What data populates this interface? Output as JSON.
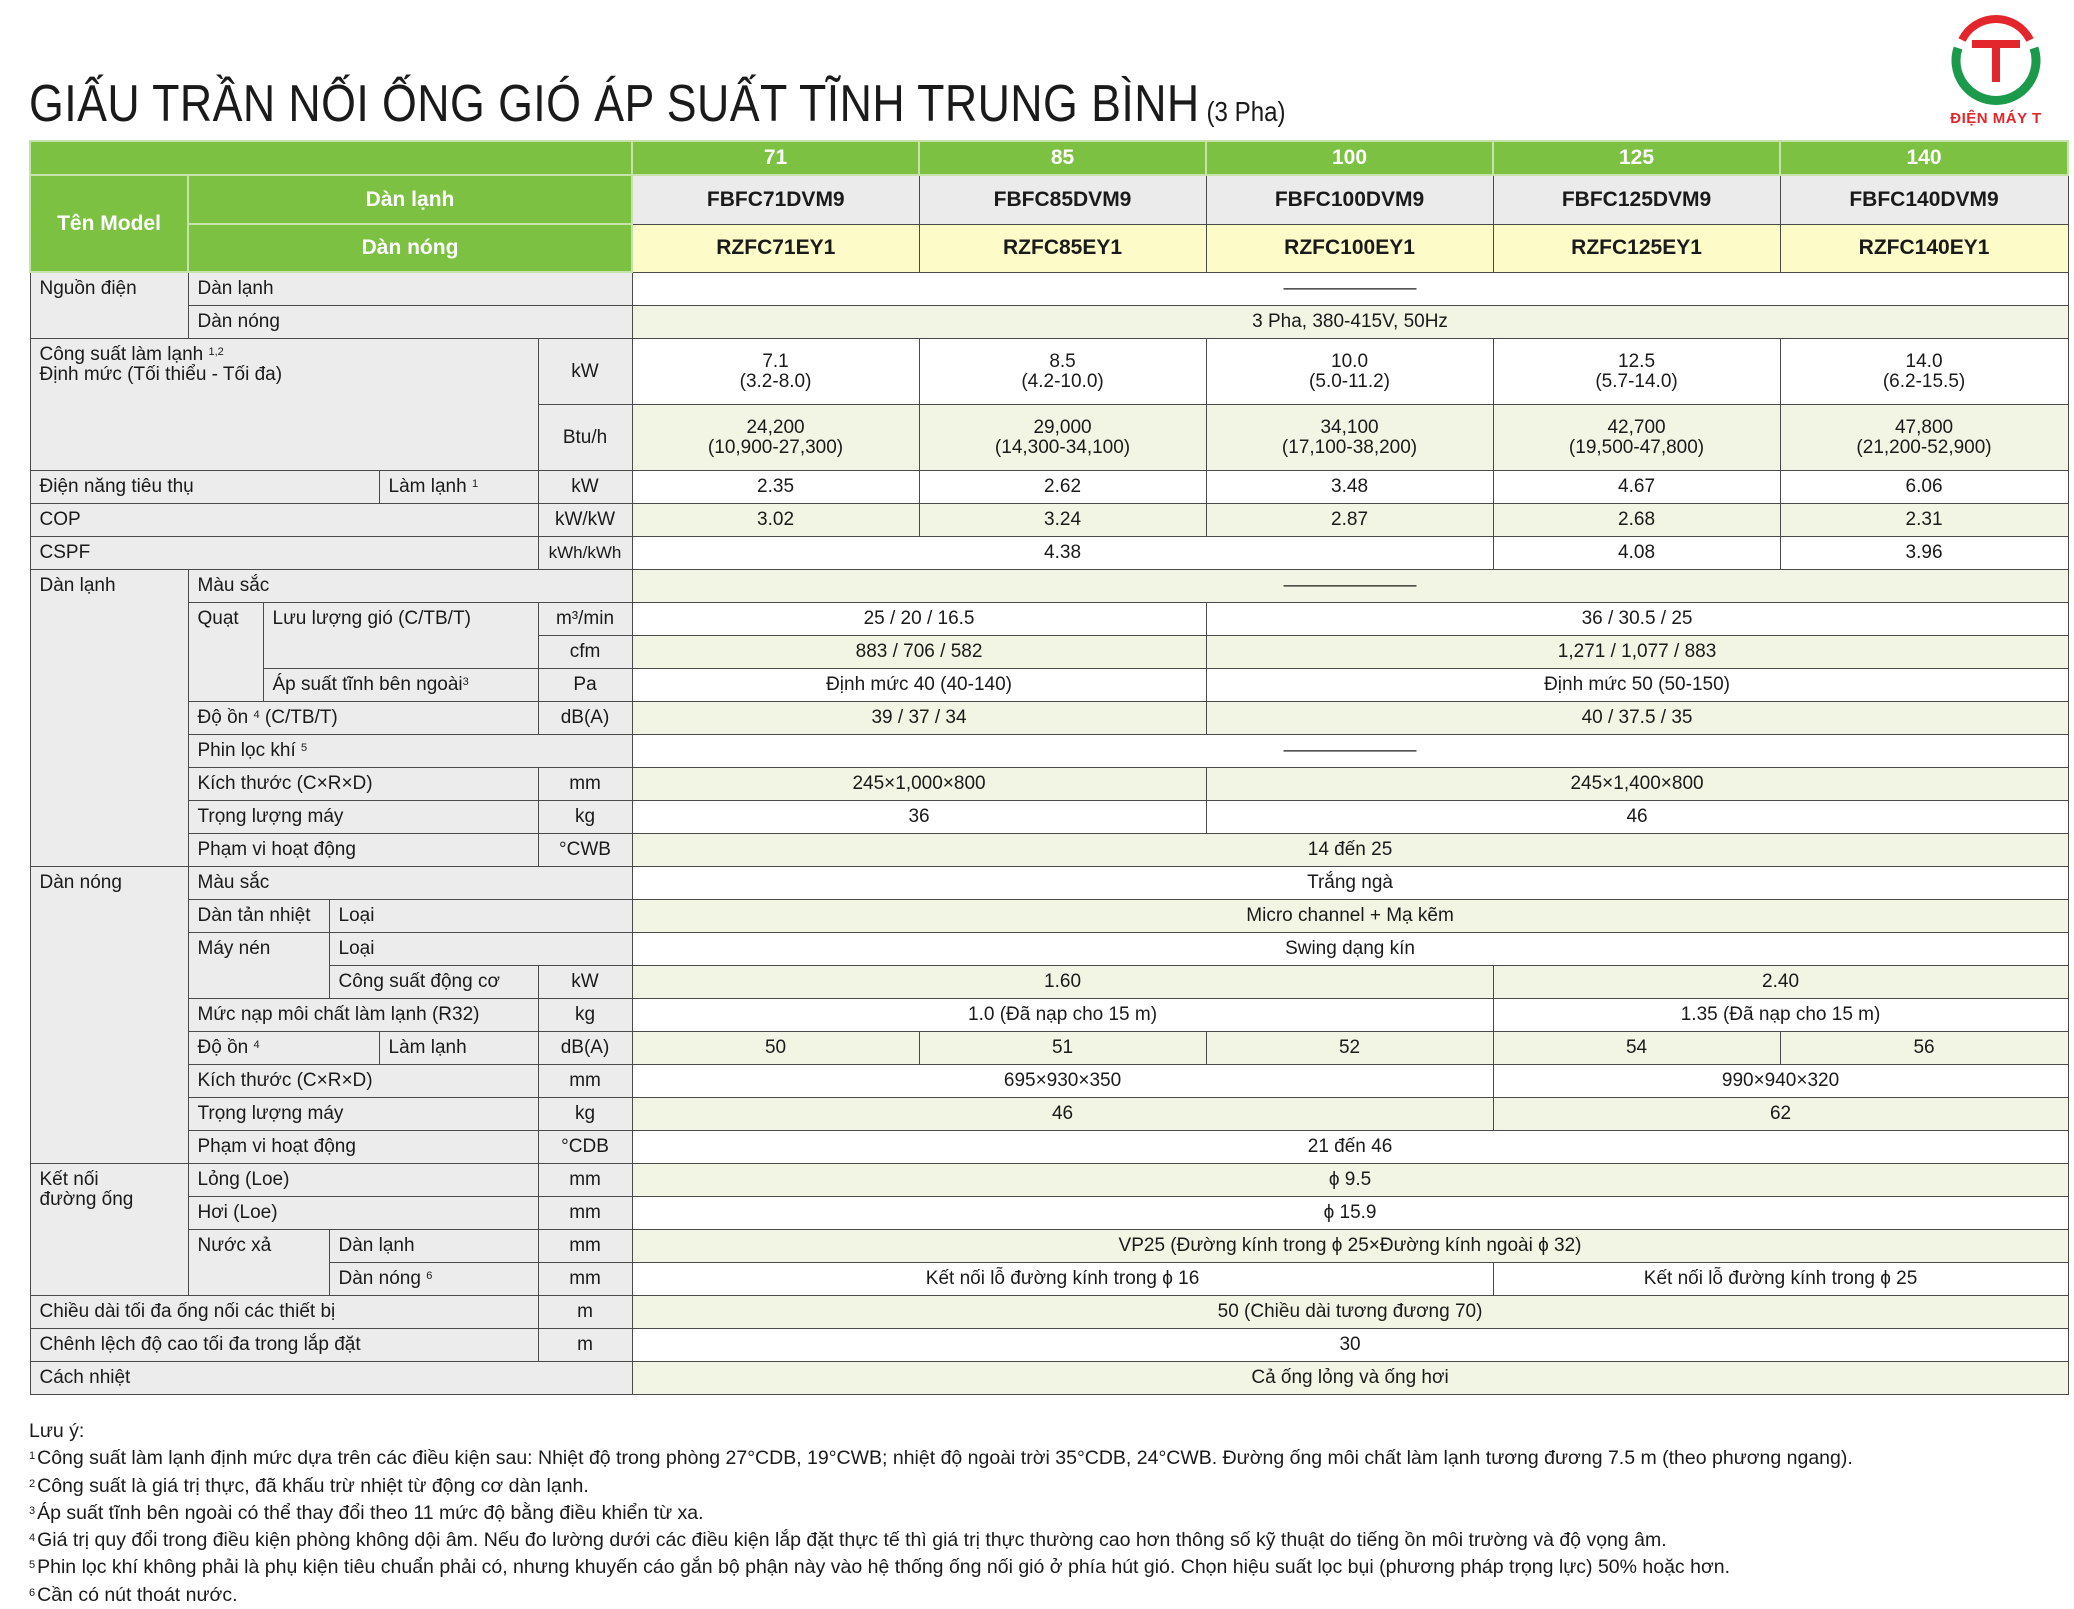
{
  "title": {
    "main": "GIẤU TRẦN NỐI ỐNG GIÓ ÁP SUẤT TĨNH TRUNG BÌNH",
    "sub": "(3 Pha)"
  },
  "logo": {
    "text": "ĐIỆN MÁY T",
    "colors": {
      "green": "#1a9a4a",
      "red": "#e3262b"
    }
  },
  "colors": {
    "header_green": "#7dc142",
    "indoor_model_bg": "#ebebeb",
    "outdoor_model_bg": "#fdfbc8",
    "label_bg": "#ececec",
    "alt_row_bg": "#f2f5e3"
  },
  "header": {
    "capacities": [
      "71",
      "85",
      "100",
      "125",
      "140"
    ],
    "ten_model": "Tên Model",
    "dan_lanh": "Dàn lạnh",
    "dan_nong": "Dàn nóng",
    "indoor_models": [
      "FBFC71DVM9",
      "FBFC85DVM9",
      "FBFC100DVM9",
      "FBFC125DVM9",
      "FBFC140DVM9"
    ],
    "outdoor_models": [
      "RZFC71EY1",
      "RZFC85EY1",
      "RZFC100EY1",
      "RZFC125EY1",
      "RZFC140EY1"
    ]
  },
  "labels": {
    "nguon_dien": "Nguồn điện",
    "dan_lanh": "Dàn lạnh",
    "dan_nong": "Dàn nóng",
    "cong_suat_1": "Công suất làm lạnh",
    "cong_suat_sup": "1,2",
    "cong_suat_2": "Định mức (Tối thiểu - Tối đa)",
    "dien_nang": "Điện năng tiêu thụ",
    "lam_lanh": "Làm lạnh",
    "sup1": "1",
    "cop": "COP",
    "cspf": "CSPF",
    "mau_sac": "Màu sắc",
    "quat": "Quạt",
    "luu_luong": "Lưu lượng gió (C/TB/T)",
    "ap_suat": "Áp suất tĩnh bên ngoài",
    "sup3": "3",
    "do_on": "Độ ồn",
    "sup4": "4",
    "ctbt": "(C/TB/T)",
    "phin_loc": "Phin lọc khí",
    "sup5": "5",
    "kich_thuoc": "Kích thước (C×R×D)",
    "trong_luong": "Trọng lượng máy",
    "pham_vi": "Phạm vi hoạt động",
    "dan_tan_nhiet": "Dàn tản nhiệt",
    "loai": "Loại",
    "may_nen": "Máy nén",
    "cong_suat_dong_co": "Công suất động cơ",
    "muc_nap": "Mức nạp môi chất làm lạnh (R32)",
    "ket_noi": "Kết nối",
    "duong_ong": "đường ống",
    "long": "Lỏng (Loe)",
    "hoi": "Hơi (Loe)",
    "nuoc_xa": "Nước xả",
    "sup6": "6",
    "chieu_dai": "Chiều dài tối đa ống nối các thiết bị",
    "chenh_lech": "Chênh lệch độ cao tối đa trong lắp đặt",
    "cach_nhiet": "Cách nhiệt"
  },
  "units": {
    "kw": "kW",
    "btu": "Btu/h",
    "kwkw": "kW/kW",
    "kwh": "kWh/kWh",
    "m3": "m³/min",
    "cfm": "cfm",
    "pa": "Pa",
    "db": "dB(A)",
    "mm": "mm",
    "kg": "kg",
    "cwb": "°CWB",
    "cdb": "°CDB",
    "m": "m"
  },
  "values": {
    "nguon_dl": "———————",
    "nguon_dn": "3 Pha, 380-415V, 50Hz",
    "cs_kw": [
      [
        "7.1",
        "(3.2-8.0)"
      ],
      [
        "8.5",
        "(4.2-10.0)"
      ],
      [
        "10.0",
        "(5.0-11.2)"
      ],
      [
        "12.5",
        "(5.7-14.0)"
      ],
      [
        "14.0",
        "(6.2-15.5)"
      ]
    ],
    "cs_btu": [
      [
        "24,200",
        "(10,900-27,300)"
      ],
      [
        "29,000",
        "(14,300-34,100)"
      ],
      [
        "34,100",
        "(17,100-38,200)"
      ],
      [
        "42,700",
        "(19,500-47,800)"
      ],
      [
        "47,800",
        "(21,200-52,900)"
      ]
    ],
    "dien_nang": [
      "2.35",
      "2.62",
      "3.48",
      "4.67",
      "6.06"
    ],
    "cop": [
      "3.02",
      "3.24",
      "2.87",
      "2.68",
      "2.31"
    ],
    "cspf": [
      "4.38",
      "4.08",
      "3.96"
    ],
    "dl_mau_sac": "———————",
    "luu_luong_m3": [
      "25 / 20 / 16.5",
      "36 / 30.5 / 25"
    ],
    "luu_luong_cfm": [
      "883 / 706 / 582",
      "1,271 / 1,077 / 883"
    ],
    "ap_suat": [
      "Định mức 40 (40-140)",
      "Định mức 50 (50-150)"
    ],
    "dl_do_on": [
      "39 / 37 / 34",
      "40 / 37.5 / 35"
    ],
    "phin_loc": "———————",
    "dl_kich_thuoc": [
      "245×1,000×800",
      "245×1,400×800"
    ],
    "dl_trong_luong": [
      "36",
      "46"
    ],
    "dl_pham_vi": "14 đến 25",
    "dn_mau_sac": "Trắng ngà",
    "dan_tan_nhiet": "Micro channel + Mạ kẽm",
    "may_nen_loai": "Swing dạng kín",
    "cong_suat_dong_co": [
      "1.60",
      "2.40"
    ],
    "muc_nap": [
      "1.0 (Đã nạp cho 15 m)",
      "1.35 (Đã nạp cho 15 m)"
    ],
    "dn_do_on": [
      "50",
      "51",
      "52",
      "54",
      "56"
    ],
    "dn_kich_thuoc": [
      "695×930×350",
      "990×940×320"
    ],
    "dn_trong_luong": [
      "46",
      "62"
    ],
    "dn_pham_vi": "21 đến 46",
    "long": "ϕ 9.5",
    "hoi": "ϕ 15.9",
    "nuoc_xa_dl": "VP25 (Đường kính trong ϕ 25×Đường kính ngoài ϕ 32)",
    "nuoc_xa_dn": [
      "Kết nối lỗ đường kính trong ϕ 16",
      "Kết nối lỗ đường kính trong ϕ 25"
    ],
    "chieu_dai": "50 (Chiều dài tương đương 70)",
    "chenh_lech": "30",
    "cach_nhiet": "Cả ống lỏng và ống hơi"
  },
  "notes": {
    "heading": "Lưu ý:",
    "items": [
      {
        "n": "1",
        "t": "Công suất làm lạnh định mức dựa trên các điều kiện sau: Nhiệt độ trong phòng 27°CDB, 19°CWB; nhiệt độ ngoài trời 35°CDB, 24°CWB. Đường ống môi chất làm lạnh tương đương 7.5 m (theo phương ngang)."
      },
      {
        "n": "2",
        "t": "Công suất là giá trị thực, đã khấu trừ nhiệt từ động cơ dàn lạnh."
      },
      {
        "n": "3",
        "t": "Áp suất tĩnh bên ngoài có thể thay đổi theo 11 mức độ bằng điều khiển từ xa."
      },
      {
        "n": "4",
        "t": "Giá trị quy đổi trong điều kiện phòng không dội âm. Nếu đo lường dưới các điều kiện lắp đặt thực tế thì giá trị thực thường cao hơn thông số kỹ thuật do tiếng ồn môi trường và độ vọng âm."
      },
      {
        "n": "5",
        "t": "Phin lọc khí không phải là phụ kiện tiêu chuẩn phải có, nhưng khuyến cáo gắn bộ phận này vào hệ thống ống nối gió ở phía hút gió. Chọn hiệu suất lọc bụi (phương pháp trọng lực) 50% hoặc hơn."
      },
      {
        "n": "6",
        "t": "Cần có nút thoát nước."
      }
    ]
  }
}
